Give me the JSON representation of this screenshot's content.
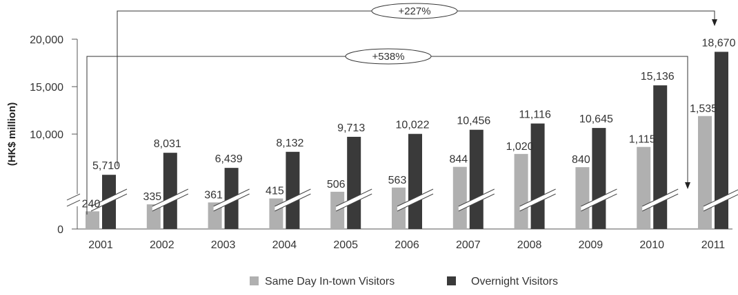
{
  "chart_data": {
    "type": "bar",
    "ylabel": "(HK$ million)",
    "ylim": [
      0,
      20000
    ],
    "y_ticks": [
      "0",
      "10,000",
      "15,000",
      "20,000"
    ],
    "axis_break": true,
    "categories": [
      "2001",
      "2002",
      "2003",
      "2004",
      "2005",
      "2006",
      "2007",
      "2008",
      "2009",
      "2010",
      "2011"
    ],
    "series": [
      {
        "name": "Same Day In-town Visitors",
        "color": "#b0b0b0",
        "values": [
          240,
          335,
          361,
          415,
          506,
          563,
          844,
          1020,
          840,
          1115,
          1535
        ],
        "labels": [
          "240",
          "335",
          "361",
          "415",
          "506",
          "563",
          "844",
          "1,020",
          "840",
          "1,115",
          "1,535"
        ]
      },
      {
        "name": "Overnight Visitors",
        "color": "#3a3a3a",
        "values": [
          5710,
          8031,
          6439,
          8132,
          9713,
          10022,
          10456,
          11116,
          10645,
          15136,
          18670
        ],
        "labels": [
          "5,710",
          "8,031",
          "6,439",
          "8,132",
          "9,713",
          "10,022",
          "10,456",
          "11,116",
          "10,645",
          "15,136",
          "18,670"
        ]
      }
    ],
    "annotations": [
      {
        "text": "+227%",
        "from": "2001",
        "from_series": "Overnight Visitors",
        "to": "2011",
        "to_series": "Overnight Visitors"
      },
      {
        "text": "+538%",
        "from": "2001",
        "from_series": "Same Day In-town Visitors",
        "to": "2011",
        "to_series": "Same Day In-town Visitors"
      }
    ],
    "legend_position": "bottom-center",
    "grid": false
  }
}
